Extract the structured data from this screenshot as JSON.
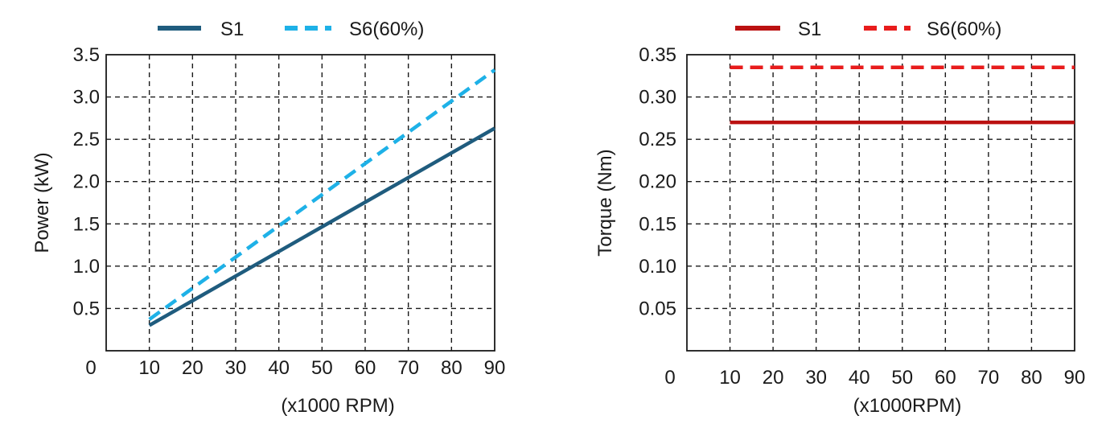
{
  "chart_data": [
    {
      "type": "line",
      "title": "",
      "xlabel": "(x1000 RPM)",
      "ylabel": "Power (kW)",
      "origin_label": "0",
      "xlim": [
        10,
        90
      ],
      "ylim": [
        0,
        3.5
      ],
      "x_ticks": [
        10,
        20,
        30,
        40,
        50,
        60,
        70,
        80,
        90
      ],
      "x_tick_labels": [
        "10",
        "20",
        "30",
        "40",
        "50",
        "60",
        "70",
        "80",
        "90"
      ],
      "y_ticks": [
        0.5,
        1.0,
        1.5,
        2.0,
        2.5,
        3.0,
        3.5
      ],
      "y_tick_labels": [
        "0.5",
        "1.0",
        "1.5",
        "2.0",
        "2.5",
        "3.0",
        "3.5"
      ],
      "grid": true,
      "legend_position": "top",
      "series": [
        {
          "name": "S1",
          "color": "#1f5c7e",
          "style": "solid",
          "x": [
            10,
            90
          ],
          "y": [
            0.3,
            2.63
          ]
        },
        {
          "name": "S6(60%)",
          "color": "#1eb1e7",
          "style": "dashed",
          "x": [
            10,
            90
          ],
          "y": [
            0.37,
            3.32
          ]
        }
      ]
    },
    {
      "type": "line",
      "title": "",
      "xlabel": "(x1000RPM)",
      "ylabel": "Torque  (Nm)",
      "origin_label": "0",
      "xlim": [
        10,
        90
      ],
      "ylim": [
        0,
        0.35
      ],
      "x_ticks": [
        10,
        20,
        30,
        40,
        50,
        60,
        70,
        80,
        90
      ],
      "x_tick_labels": [
        "10",
        "20",
        "30",
        "40",
        "50",
        "60",
        "70",
        "80",
        "90"
      ],
      "y_ticks": [
        0.05,
        0.1,
        0.15,
        0.2,
        0.25,
        0.3,
        0.35
      ],
      "y_tick_labels": [
        "0.05",
        "0.10",
        "0.15",
        "0.20",
        "0.25",
        "0.30",
        "0.35"
      ],
      "grid": true,
      "legend_position": "top",
      "series": [
        {
          "name": "S1",
          "color": "#bb1111",
          "style": "solid",
          "x": [
            10,
            90
          ],
          "y": [
            0.27,
            0.27
          ]
        },
        {
          "name": "S6(60%)",
          "color": "#e81c1c",
          "style": "dashed",
          "x": [
            10,
            90
          ],
          "y": [
            0.335,
            0.335
          ]
        }
      ]
    }
  ]
}
